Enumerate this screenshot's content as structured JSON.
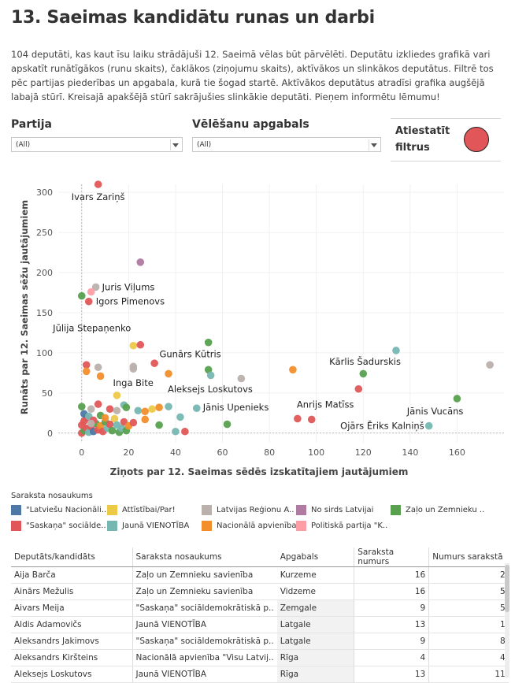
{
  "title": "13. Saeimas kandidātu runas un darbi",
  "description": "104 deputāti, kas kaut īsu laiku strādājuši 12. Saeimā vēlas būt pārvēlēti. Deputātu izkliedes grafikā vari apskatīt runātīgākos (runu skaits), čaklākos (ziņojumu skaits), aktīvākos un slinkākos deputātus. Filtrē tos pēc partijas piederības un apgabala, kurā tie šogad startē. Aktīvākos deputātus atradīsi grafika augšējā labajā stūrī. Kreisajā apakšējā stūrī sakrājušies slinkākie deputāti. Pieņem informētu lēmumu!",
  "filters": {
    "party_label": "Partija",
    "party_value": "(All)",
    "district_label": "Vēlēšanu apgabals",
    "district_value": "(All)",
    "reset_label": "Atiestatīt filtrus",
    "reset_color": "#e15759"
  },
  "chart_data": {
    "type": "scatter",
    "xlabel": "Ziņots par 12. Saeimas sēdēs izskatītajiem jautājumiem",
    "ylabel": "Runāts par 12. Saeimas sēžu jautājumiem",
    "xlim": [
      -10,
      180
    ],
    "ylim": [
      -12,
      310
    ],
    "xticks": [
      0,
      20,
      40,
      60,
      80,
      100,
      120,
      140,
      160
    ],
    "yticks": [
      0,
      50,
      100,
      150,
      200,
      250,
      300
    ],
    "grid": true,
    "party_colors": {
      "latv": "#4e79a7",
      "attist": "#edc948",
      "lra": "#bab0ac",
      "nosirds": "#b07aa1",
      "zzs": "#59a14f",
      "saskana": "#e15759",
      "vienotiba": "#76b7b2",
      "na": "#f28e2b",
      "kpv": "#ff9da7"
    },
    "points": [
      {
        "x": 7,
        "y": 310,
        "party": "saskana"
      },
      {
        "x": 25,
        "y": 213,
        "party": "nosirds"
      },
      {
        "x": 6,
        "y": 182,
        "party": "lra"
      },
      {
        "x": 4,
        "y": 176,
        "party": "kpv"
      },
      {
        "x": 0,
        "y": 171,
        "party": "zzs"
      },
      {
        "x": 3,
        "y": 164,
        "party": "saskana"
      },
      {
        "x": 22,
        "y": 109,
        "party": "attist"
      },
      {
        "x": 25,
        "y": 110,
        "party": "saskana"
      },
      {
        "x": 54,
        "y": 113,
        "party": "zzs"
      },
      {
        "x": 134,
        "y": 103,
        "party": "vienotiba"
      },
      {
        "x": 2,
        "y": 85,
        "party": "saskana"
      },
      {
        "x": 7,
        "y": 82,
        "party": "lra"
      },
      {
        "x": 22,
        "y": 83,
        "party": "lra"
      },
      {
        "x": 22,
        "y": 80,
        "party": "lra"
      },
      {
        "x": 31,
        "y": 87,
        "party": "saskana"
      },
      {
        "x": 2,
        "y": 77,
        "party": "na"
      },
      {
        "x": 8,
        "y": 71,
        "party": "na"
      },
      {
        "x": 37,
        "y": 74,
        "party": "na"
      },
      {
        "x": 54,
        "y": 79,
        "party": "zzs"
      },
      {
        "x": 55,
        "y": 72,
        "party": "vienotiba"
      },
      {
        "x": 68,
        "y": 68,
        "party": "lra"
      },
      {
        "x": 90,
        "y": 79,
        "party": "na"
      },
      {
        "x": 120,
        "y": 74,
        "party": "zzs"
      },
      {
        "x": 174,
        "y": 85,
        "party": "lra"
      },
      {
        "x": 118,
        "y": 55,
        "party": "saskana"
      },
      {
        "x": 15,
        "y": 47,
        "party": "attist"
      },
      {
        "x": 160,
        "y": 43,
        "party": "zzs"
      },
      {
        "x": 0,
        "y": 33,
        "party": "zzs"
      },
      {
        "x": 4,
        "y": 30,
        "party": "lra"
      },
      {
        "x": 7,
        "y": 36,
        "party": "saskana"
      },
      {
        "x": 12,
        "y": 30,
        "party": "saskana"
      },
      {
        "x": 15,
        "y": 28,
        "party": "lra"
      },
      {
        "x": 18,
        "y": 35,
        "party": "vienotiba"
      },
      {
        "x": 19,
        "y": 32,
        "party": "zzs"
      },
      {
        "x": 24,
        "y": 28,
        "party": "vienotiba"
      },
      {
        "x": 27,
        "y": 27,
        "party": "na"
      },
      {
        "x": 30,
        "y": 30,
        "party": "attist"
      },
      {
        "x": 33,
        "y": 32,
        "party": "na"
      },
      {
        "x": 37,
        "y": 33,
        "party": "vienotiba"
      },
      {
        "x": 42,
        "y": 20,
        "party": "vienotiba"
      },
      {
        "x": 49,
        "y": 31,
        "party": "vienotiba"
      },
      {
        "x": 27,
        "y": 17,
        "party": "na"
      },
      {
        "x": 33,
        "y": 10,
        "party": "zzs"
      },
      {
        "x": 62,
        "y": 11,
        "party": "zzs"
      },
      {
        "x": 92,
        "y": 18,
        "party": "saskana"
      },
      {
        "x": 98,
        "y": 17,
        "party": "saskana"
      },
      {
        "x": 148,
        "y": 9,
        "party": "vienotiba"
      },
      {
        "x": 40,
        "y": 2,
        "party": "vienotiba"
      },
      {
        "x": 44,
        "y": 2,
        "party": "saskana"
      },
      {
        "x": 0,
        "y": 0,
        "party": "saskana"
      },
      {
        "x": 1,
        "y": 3,
        "party": "zzs"
      },
      {
        "x": 2,
        "y": 6,
        "party": "saskana"
      },
      {
        "x": 3,
        "y": 1,
        "party": "vienotiba"
      },
      {
        "x": 4,
        "y": 8,
        "party": "saskana"
      },
      {
        "x": 5,
        "y": 2,
        "party": "latv"
      },
      {
        "x": 6,
        "y": 12,
        "party": "zzs"
      },
      {
        "x": 7,
        "y": 4,
        "party": "saskana"
      },
      {
        "x": 8,
        "y": 9,
        "party": "na"
      },
      {
        "x": 9,
        "y": 2,
        "party": "saskana"
      },
      {
        "x": 10,
        "y": 14,
        "party": "zzs"
      },
      {
        "x": 11,
        "y": 6,
        "party": "vienotiba"
      },
      {
        "x": 12,
        "y": 11,
        "party": "saskana"
      },
      {
        "x": 13,
        "y": 3,
        "party": "zzs"
      },
      {
        "x": 14,
        "y": 18,
        "party": "attist"
      },
      {
        "x": 16,
        "y": 1,
        "party": "zzs"
      },
      {
        "x": 17,
        "y": 6,
        "party": "vienotiba"
      },
      {
        "x": 18,
        "y": 14,
        "party": "saskana"
      },
      {
        "x": 19,
        "y": 3,
        "party": "zzs"
      },
      {
        "x": 20,
        "y": 9,
        "party": "na"
      },
      {
        "x": 22,
        "y": 13,
        "party": "saskana"
      },
      {
        "x": 1,
        "y": 15,
        "party": "saskana"
      },
      {
        "x": 2,
        "y": 19,
        "party": "saskana"
      },
      {
        "x": 0,
        "y": 10,
        "party": "saskana"
      },
      {
        "x": 1,
        "y": 24,
        "party": "latv"
      },
      {
        "x": 3,
        "y": 21,
        "party": "vienotiba"
      },
      {
        "x": 5,
        "y": 16,
        "party": "saskana"
      },
      {
        "x": 8,
        "y": 22,
        "party": "zzs"
      },
      {
        "x": 10,
        "y": 19,
        "party": "na"
      },
      {
        "x": 4,
        "y": 12,
        "party": "lra"
      },
      {
        "x": 15,
        "y": 10,
        "party": "vienotiba"
      }
    ],
    "annotations": [
      {
        "text": "Ivars Zariņš",
        "x": 7,
        "y": 310,
        "anchor": "middle",
        "dx": 0,
        "dy": 20
      },
      {
        "text": "Juris Viļums",
        "x": 6,
        "y": 182,
        "anchor": "start",
        "dx": 8,
        "dy": 4
      },
      {
        "text": "Igors Pimenovs",
        "x": 3,
        "y": 164,
        "anchor": "start",
        "dx": 9,
        "dy": 4
      },
      {
        "text": "Jūlija Stepaņenko",
        "x": 22,
        "y": 109,
        "anchor": "end",
        "dx": -3,
        "dy": -18
      },
      {
        "text": "Gunārs Kūtris",
        "x": 54,
        "y": 113,
        "anchor": "end",
        "dx": 16,
        "dy": 19
      },
      {
        "text": "Kārlis Šadurskis",
        "x": 134,
        "y": 103,
        "anchor": "end",
        "dx": 6,
        "dy": 18
      },
      {
        "text": "Inga Bite",
        "x": 15,
        "y": 47,
        "anchor": "start",
        "dx": -5,
        "dy": -12
      },
      {
        "text": "Aleksejs Loskutovs",
        "x": 37,
        "y": 33,
        "anchor": "start",
        "dx": -1,
        "dy": -18
      },
      {
        "text": "Jānis Upenieks",
        "x": 49,
        "y": 31,
        "anchor": "start",
        "dx": 8,
        "dy": 3
      },
      {
        "text": "Anrijs Matīss",
        "x": 92,
        "y": 18,
        "anchor": "start",
        "dx": -1,
        "dy": -14
      },
      {
        "text": "Jānis Vucāns",
        "x": 160,
        "y": 43,
        "anchor": "end",
        "dx": 8,
        "dy": 20
      },
      {
        "text": "Ojārs Ēriks Kalniņš",
        "x": 148,
        "y": 9,
        "anchor": "end",
        "dx": -6,
        "dy": 4
      }
    ]
  },
  "legend": {
    "title": "Saraksta nosaukums",
    "items": [
      {
        "label": "\"Latviešu Nacionāli..",
        "color": "#4e79a7"
      },
      {
        "label": "Attīstībai/Par!",
        "color": "#edc948"
      },
      {
        "label": "Latvijas Reģionu A..",
        "color": "#bab0ac"
      },
      {
        "label": "No sirds Latvijai",
        "color": "#b07aa1"
      },
      {
        "label": "Zaļo un Zemnieku ..",
        "color": "#59a14f"
      },
      {
        "label": "\"Saskaņa\" sociālde..",
        "color": "#e15759"
      },
      {
        "label": "Jaunā VIENOTĪBA",
        "color": "#76b7b2"
      },
      {
        "label": "Nacionālā apvienība..",
        "color": "#f28e2b"
      },
      {
        "label": "Politiskā partija \"K..",
        "color": "#ff9da7"
      }
    ]
  },
  "table": {
    "headers": [
      "Deputāts/kandidāts",
      "Saraksta nosaukums",
      "Apgabals",
      "Saraksta numurs",
      "Numurs sarakstā"
    ],
    "rows": [
      [
        "Aija Barča",
        "Zaļo un Zemnieku savienība",
        "Kurzeme",
        "16",
        "2"
      ],
      [
        "Ainārs Mežulis",
        "Zaļo un Zemnieku savienība",
        "Vidzeme",
        "16",
        "5"
      ],
      [
        "Aivars Meija",
        "\"Saskaņa\" sociāldemokrātiskā p..",
        "Zemgale",
        "9",
        "5"
      ],
      [
        "Aldis Adamovičs",
        "Jaunā VIENOTĪBA",
        "Latgale",
        "13",
        "1"
      ],
      [
        "Aleksandrs Jakimovs",
        "\"Saskaņa\" sociāldemokrātiskā p..",
        "Latgale",
        "9",
        "8"
      ],
      [
        "Aleksandrs Kiršteins",
        "Nacionālā apvienība \"Visu Latvij..",
        "Rīga",
        "4",
        "4"
      ],
      [
        "Aleksejs Loskutovs",
        "Jaunā VIENOTĪBA",
        "Rīga",
        "13",
        "11"
      ]
    ]
  }
}
